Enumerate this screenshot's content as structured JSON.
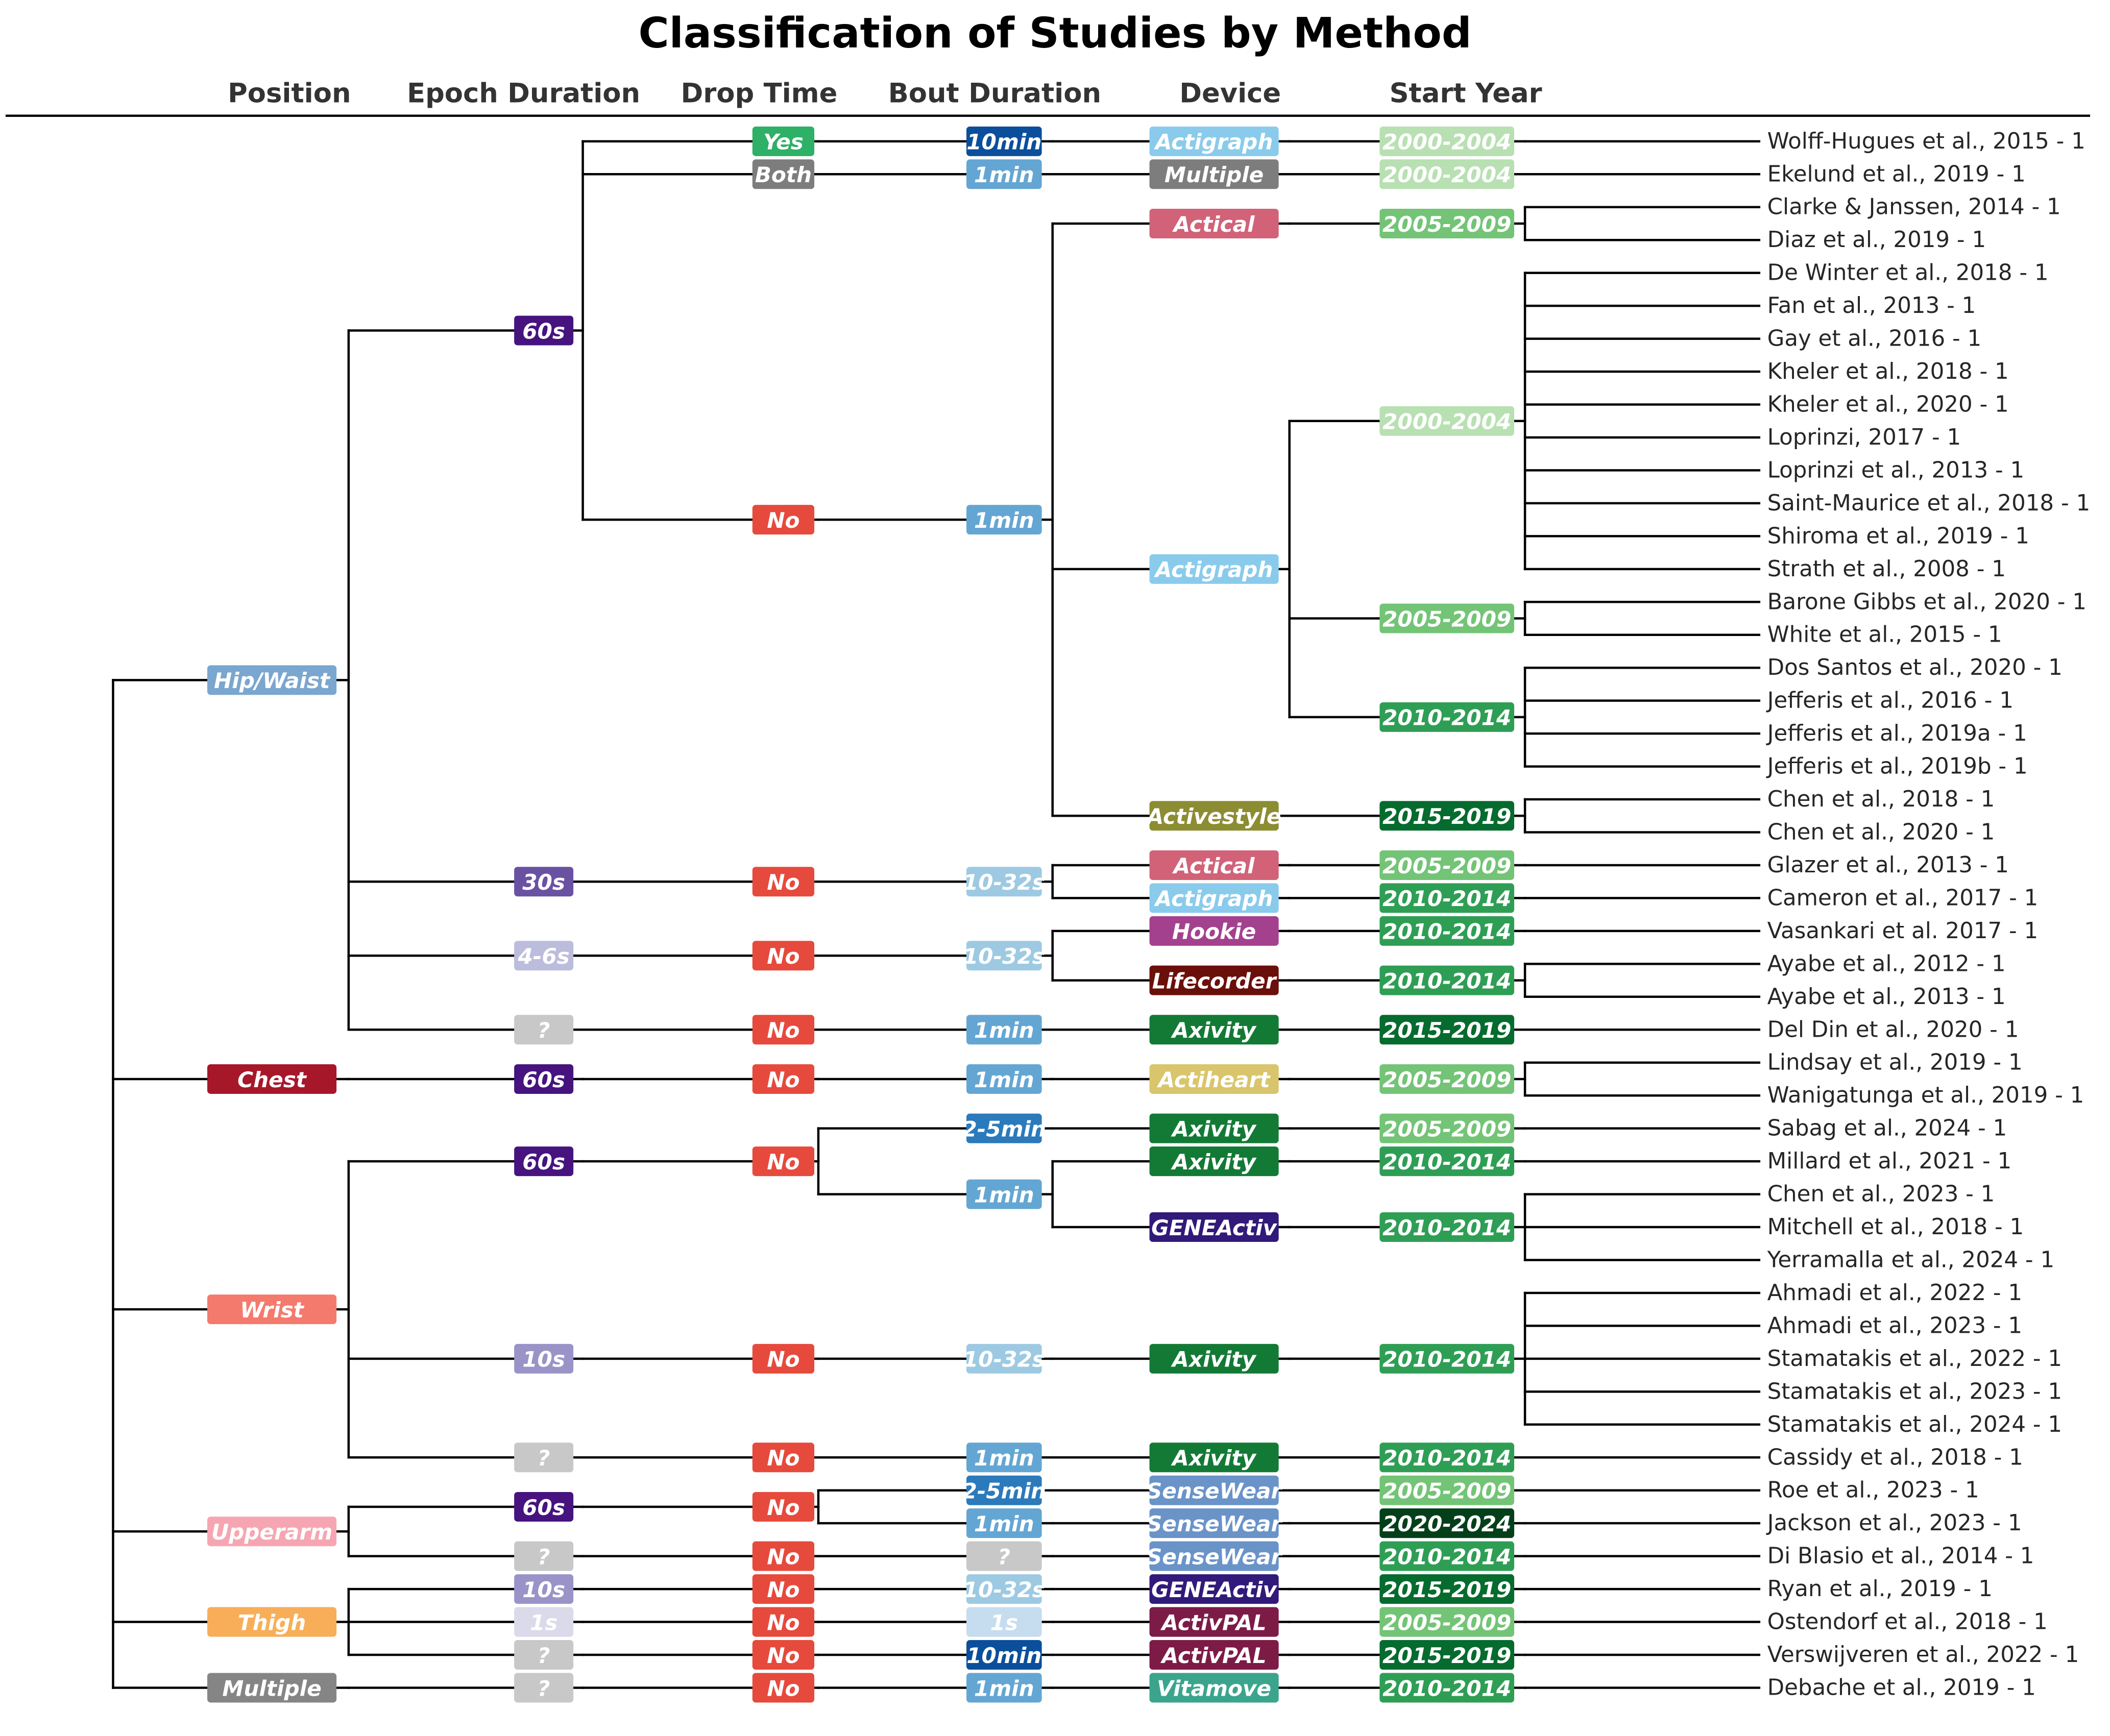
{
  "title": "Classification of Studies by Method",
  "columns": [
    "Position",
    "Epoch Duration",
    "Drop Time",
    "Bout Duration",
    "Device",
    "Start Year"
  ],
  "colors": {
    "position": {
      "Hip/Waist": "#7aa6cf",
      "Chest": "#a7172a",
      "Wrist": "#f47a6d",
      "Upperarm": "#f6a6b2",
      "Thigh": "#f8ae58",
      "Multiple": "#858585"
    },
    "epoch": {
      "60s": "#46137f",
      "30s": "#6a52a3",
      "10s": "#9a93c8",
      "4-6s": "#bcbddc",
      "1s": "#dadaeb",
      "?": "#c8c8c8"
    },
    "drop": {
      "Yes": "#2eb066",
      "Both": "#7d7d7d",
      "No": "#e64a3c"
    },
    "bout": {
      "10min": "#0b4f9c",
      "2-5min": "#2b7abb",
      "1min": "#64a6d3",
      "10-32s": "#9dcae2",
      "1s": "#c6dcef",
      "?": "#c8c8c8"
    },
    "device": {
      "Actigraph": "#8acbec",
      "Multiple": "#7d7d7d",
      "Actical": "#d16278",
      "Activestyle": "#8c8c32",
      "Hookie": "#a3418f",
      "Lifecorder": "#6b0f0b",
      "Axivity": "#137a36",
      "Actiheart": "#d9c56b",
      "GENEActiv": "#311a7a",
      "SenseWear": "#6a93c8",
      "ActivPAL": "#7d1b47",
      "Vitamove": "#3aa58c"
    },
    "year": {
      "2000-2004": "#b8e0b2",
      "2005-2009": "#73c476",
      "2010-2014": "#2f9e55",
      "2015-2019": "#066b2e",
      "2020-2024": "#03401a"
    }
  },
  "tree": [
    {
      "label": "Hip/Waist",
      "children": [
        {
          "label": "60s",
          "children": [
            {
              "label": "Yes",
              "children": [
                {
                  "label": "10min",
                  "children": [
                    {
                      "label": "Actigraph",
                      "children": [
                        {
                          "label": "2000-2004",
                          "children": [
                            "Wolff-Hugues et al., 2015 - 1"
                          ]
                        }
                      ]
                    }
                  ]
                }
              ]
            },
            {
              "label": "Both",
              "children": [
                {
                  "label": "1min",
                  "children": [
                    {
                      "label": "Multiple",
                      "children": [
                        {
                          "label": "2000-2004",
                          "children": [
                            "Ekelund et al., 2019 - 1"
                          ]
                        }
                      ]
                    }
                  ]
                }
              ]
            },
            {
              "label": "No",
              "children": [
                {
                  "label": "1min",
                  "children": [
                    {
                      "label": "Actical",
                      "children": [
                        {
                          "label": "2005-2009",
                          "children": [
                            "Clarke & Janssen, 2014 - 1",
                            "Diaz et al., 2019 - 1"
                          ]
                        }
                      ]
                    },
                    {
                      "label": "Actigraph",
                      "children": [
                        {
                          "label": "2000-2004",
                          "children": [
                            "De Winter et al., 2018 - 1",
                            "Fan et al., 2013 - 1",
                            "Gay et al., 2016 - 1",
                            "Kheler et al., 2018 - 1",
                            "Kheler et al., 2020 - 1",
                            "Loprinzi, 2017 - 1",
                            "Loprinzi et al., 2013 - 1",
                            "Saint-Maurice et al., 2018 - 1",
                            "Shiroma et al., 2019 - 1",
                            "Strath et al., 2008 - 1"
                          ]
                        },
                        {
                          "label": "2005-2009",
                          "children": [
                            "Barone Gibbs et al., 2020 - 1",
                            "White et al., 2015 - 1"
                          ]
                        },
                        {
                          "label": "2010-2014",
                          "children": [
                            "Dos Santos et al., 2020 - 1",
                            "Jefferis et al., 2016 - 1",
                            "Jefferis et al., 2019a - 1",
                            "Jefferis et al., 2019b - 1"
                          ]
                        }
                      ]
                    },
                    {
                      "label": "Activestyle",
                      "children": [
                        {
                          "label": "2015-2019",
                          "children": [
                            "Chen et al., 2018 - 1",
                            "Chen et al., 2020 - 1"
                          ]
                        }
                      ]
                    }
                  ]
                }
              ]
            }
          ]
        },
        {
          "label": "30s",
          "children": [
            {
              "label": "No",
              "children": [
                {
                  "label": "10-32s",
                  "children": [
                    {
                      "label": "Actical",
                      "children": [
                        {
                          "label": "2005-2009",
                          "children": [
                            "Glazer et al., 2013 - 1"
                          ]
                        }
                      ]
                    },
                    {
                      "label": "Actigraph",
                      "children": [
                        {
                          "label": "2010-2014",
                          "children": [
                            "Cameron et al., 2017 - 1"
                          ]
                        }
                      ]
                    }
                  ]
                }
              ]
            }
          ]
        },
        {
          "label": "4-6s",
          "children": [
            {
              "label": "No",
              "children": [
                {
                  "label": "10-32s",
                  "children": [
                    {
                      "label": "Hookie",
                      "children": [
                        {
                          "label": "2010-2014",
                          "children": [
                            "Vasankari et al. 2017 - 1"
                          ]
                        }
                      ]
                    },
                    {
                      "label": "Lifecorder",
                      "children": [
                        {
                          "label": "2010-2014",
                          "children": [
                            "Ayabe et al., 2012 - 1",
                            "Ayabe et al., 2013 - 1"
                          ]
                        }
                      ]
                    }
                  ]
                }
              ]
            }
          ]
        },
        {
          "label": "?",
          "children": [
            {
              "label": "No",
              "children": [
                {
                  "label": "1min",
                  "children": [
                    {
                      "label": "Axivity",
                      "children": [
                        {
                          "label": "2015-2019",
                          "children": [
                            "Del Din et al., 2020 - 1"
                          ]
                        }
                      ]
                    }
                  ]
                }
              ]
            }
          ]
        }
      ]
    },
    {
      "label": "Chest",
      "children": [
        {
          "label": "60s",
          "children": [
            {
              "label": "No",
              "children": [
                {
                  "label": "1min",
                  "children": [
                    {
                      "label": "Actiheart",
                      "children": [
                        {
                          "label": "2005-2009",
                          "children": [
                            "Lindsay et al., 2019 - 1",
                            "Wanigatunga et al., 2019 - 1"
                          ]
                        }
                      ]
                    }
                  ]
                }
              ]
            }
          ]
        }
      ]
    },
    {
      "label": "Wrist",
      "children": [
        {
          "label": "60s",
          "children": [
            {
              "label": "No",
              "children": [
                {
                  "label": "2-5min",
                  "children": [
                    {
                      "label": "Axivity",
                      "children": [
                        {
                          "label": "2005-2009",
                          "children": [
                            "Sabag et al., 2024 - 1"
                          ]
                        }
                      ]
                    }
                  ]
                },
                {
                  "label": "1min",
                  "children": [
                    {
                      "label": "Axivity",
                      "children": [
                        {
                          "label": "2010-2014",
                          "children": [
                            "Millard et al., 2021 - 1"
                          ]
                        }
                      ]
                    },
                    {
                      "label": "GENEActiv",
                      "children": [
                        {
                          "label": "2010-2014",
                          "children": [
                            "Chen et al., 2023 - 1",
                            "Mitchell et al., 2018 - 1",
                            "Yerramalla et al., 2024 - 1"
                          ]
                        }
                      ]
                    }
                  ]
                }
              ]
            }
          ]
        },
        {
          "label": "10s",
          "children": [
            {
              "label": "No",
              "children": [
                {
                  "label": "10-32s",
                  "children": [
                    {
                      "label": "Axivity",
                      "children": [
                        {
                          "label": "2010-2014",
                          "children": [
                            "Ahmadi et al., 2022 - 1",
                            "Ahmadi et al., 2023 - 1",
                            "Stamatakis et al., 2022 - 1",
                            "Stamatakis et al., 2023 - 1",
                            "Stamatakis et al., 2024 - 1"
                          ]
                        }
                      ]
                    }
                  ]
                }
              ]
            }
          ]
        },
        {
          "label": "?",
          "children": [
            {
              "label": "No",
              "children": [
                {
                  "label": "1min",
                  "children": [
                    {
                      "label": "Axivity",
                      "children": [
                        {
                          "label": "2010-2014",
                          "children": [
                            "Cassidy et al., 2018 - 1"
                          ]
                        }
                      ]
                    }
                  ]
                }
              ]
            }
          ]
        }
      ]
    },
    {
      "label": "Upperarm",
      "children": [
        {
          "label": "60s",
          "children": [
            {
              "label": "No",
              "children": [
                {
                  "label": "2-5min",
                  "children": [
                    {
                      "label": "SenseWear",
                      "children": [
                        {
                          "label": "2005-2009",
                          "children": [
                            "Roe et al., 2023 - 1"
                          ]
                        }
                      ]
                    }
                  ]
                },
                {
                  "label": "1min",
                  "children": [
                    {
                      "label": "SenseWear",
                      "children": [
                        {
                          "label": "2020-2024",
                          "children": [
                            "Jackson et al., 2023 - 1"
                          ]
                        }
                      ]
                    }
                  ]
                }
              ]
            }
          ]
        },
        {
          "label": "?",
          "children": [
            {
              "label": "No",
              "children": [
                {
                  "label": "?",
                  "children": [
                    {
                      "label": "SenseWear",
                      "children": [
                        {
                          "label": "2010-2014",
                          "children": [
                            "Di Blasio et al., 2014 - 1"
                          ]
                        }
                      ]
                    }
                  ]
                }
              ]
            }
          ]
        }
      ]
    },
    {
      "label": "Thigh",
      "children": [
        {
          "label": "10s",
          "children": [
            {
              "label": "No",
              "children": [
                {
                  "label": "10-32s",
                  "children": [
                    {
                      "label": "GENEActiv",
                      "children": [
                        {
                          "label": "2015-2019",
                          "children": [
                            "Ryan et al., 2019 - 1"
                          ]
                        }
                      ]
                    }
                  ]
                }
              ]
            }
          ]
        },
        {
          "label": "1s",
          "children": [
            {
              "label": "No",
              "children": [
                {
                  "label": "1s",
                  "children": [
                    {
                      "label": "ActivPAL",
                      "children": [
                        {
                          "label": "2005-2009",
                          "children": [
                            "Ostendorf et al., 2018 - 1"
                          ]
                        }
                      ]
                    }
                  ]
                }
              ]
            }
          ]
        },
        {
          "label": "?",
          "children": [
            {
              "label": "No",
              "children": [
                {
                  "label": "10min",
                  "children": [
                    {
                      "label": "ActivPAL",
                      "children": [
                        {
                          "label": "2015-2019",
                          "children": [
                            "Verswijveren et al., 2022 - 1"
                          ]
                        }
                      ]
                    }
                  ]
                }
              ]
            }
          ]
        }
      ]
    },
    {
      "label": "Multiple",
      "children": [
        {
          "label": "?",
          "children": [
            {
              "label": "No",
              "children": [
                {
                  "label": "1min",
                  "children": [
                    {
                      "label": "Vitamove",
                      "children": [
                        {
                          "label": "2010-2014",
                          "children": [
                            "Debache et al., 2019 - 1"
                          ]
                        }
                      ]
                    }
                  ]
                }
              ]
            }
          ]
        }
      ]
    }
  ]
}
